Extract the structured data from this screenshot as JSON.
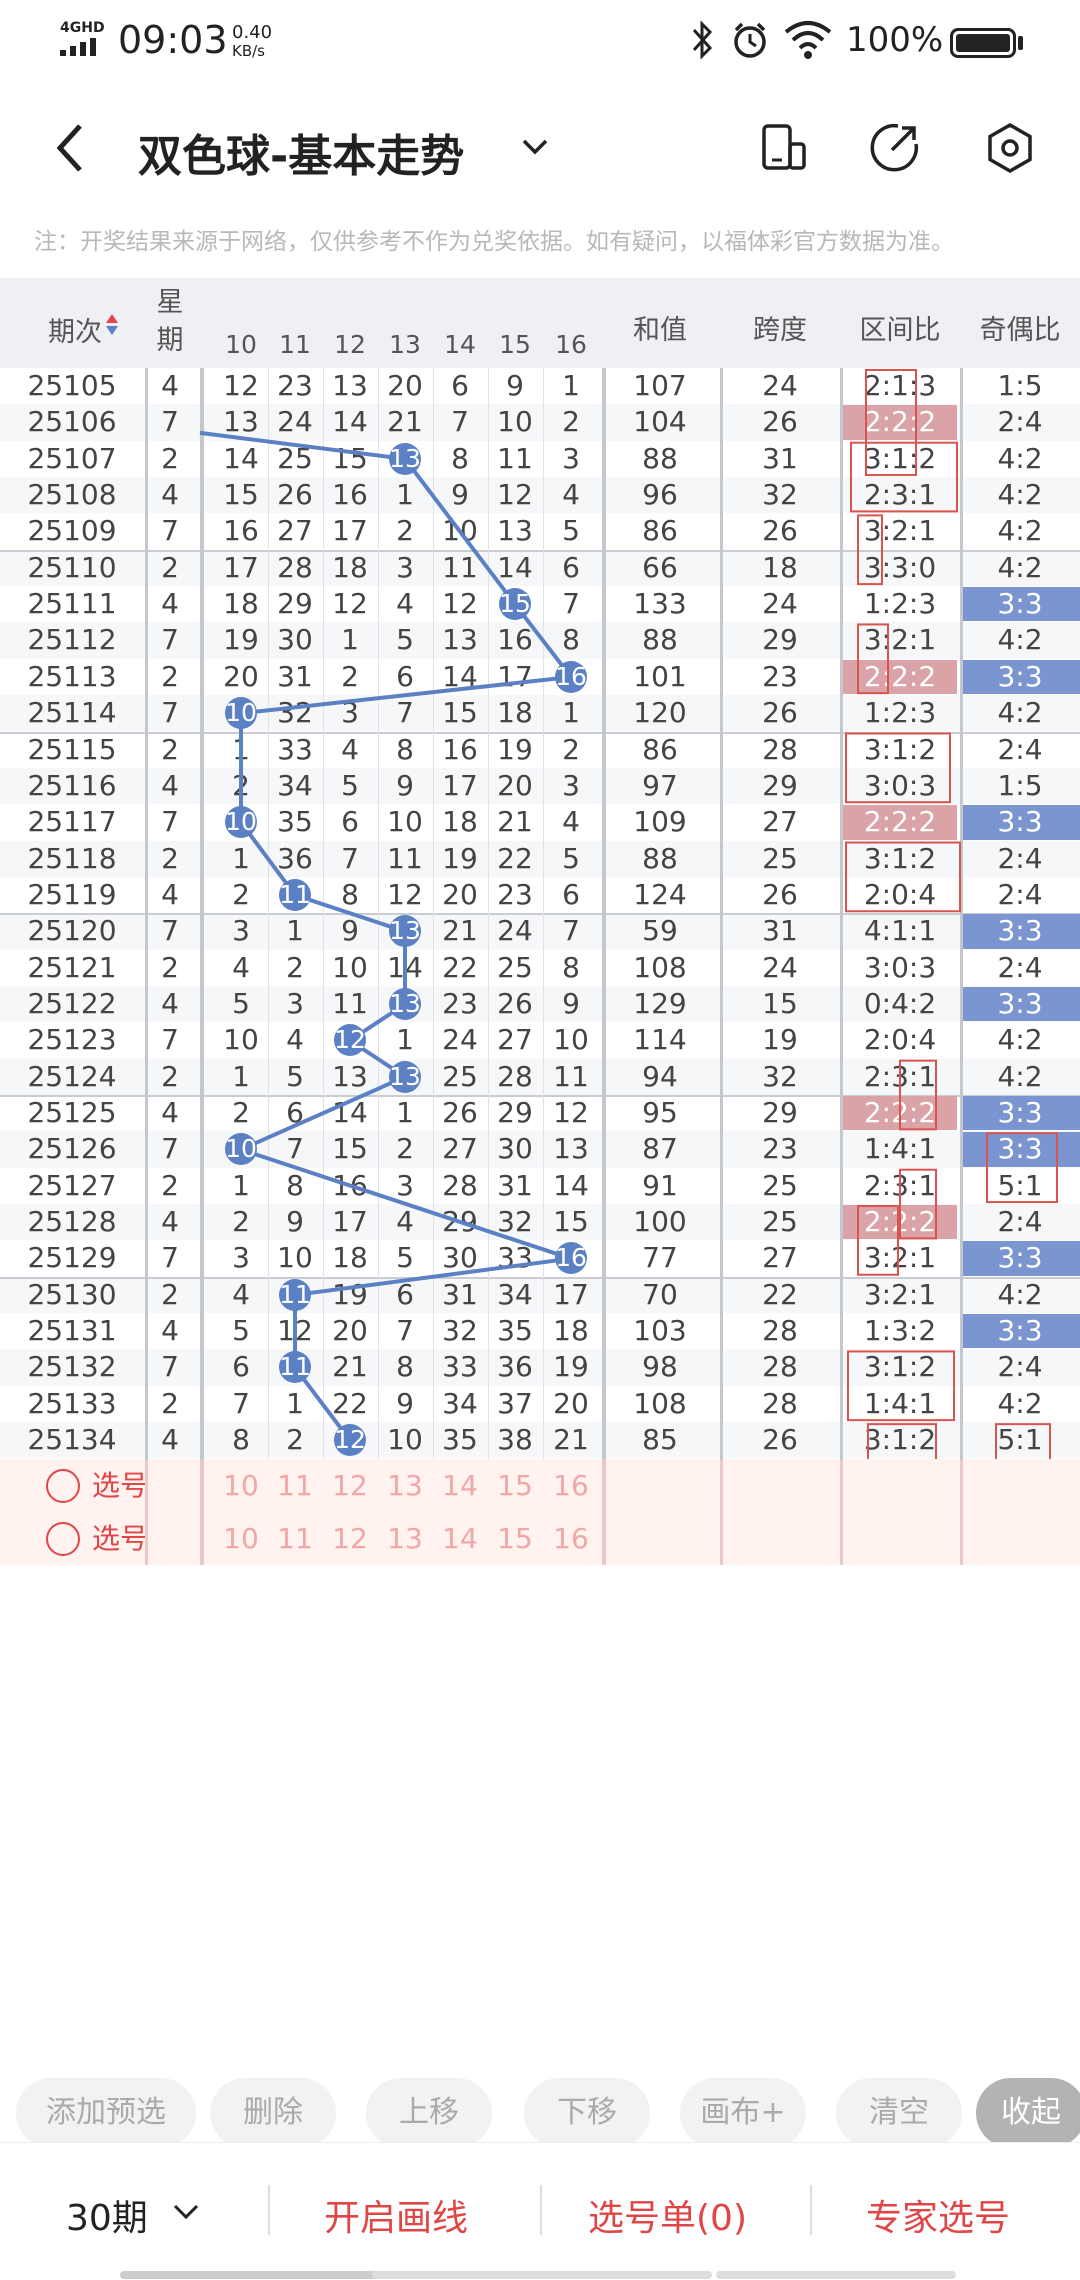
{
  "status_bar": {
    "network": "4GHD",
    "time": "09:03",
    "speed": "0.40",
    "speed_unit": "KB/s",
    "battery": "100%"
  },
  "header": {
    "title": "双色球-基本走势"
  },
  "notice": "注：开奖结果来源于网络，仅供参考不作为兑奖依据。如有疑问，以福体彩官方数据为准。",
  "table": {
    "columns": {
      "period": "期次",
      "weekday": "星期",
      "nums": [
        "10",
        "11",
        "12",
        "13",
        "14",
        "15",
        "16"
      ],
      "sum": "和值",
      "span": "跨度",
      "zone_ratio": "区间比",
      "odd_even": "奇偶比"
    },
    "rows": [
      {
        "p": "25105",
        "w": "4",
        "n": [
          "12",
          "23",
          "13",
          "20",
          "6",
          "9",
          "1"
        ],
        "s": "107",
        "sp": "24",
        "z": "2:1:3",
        "o": "1:5"
      },
      {
        "p": "25106",
        "w": "7",
        "n": [
          "13",
          "24",
          "14",
          "21",
          "7",
          "10",
          "2"
        ],
        "s": "104",
        "sp": "26",
        "z": "2:2:2",
        "o": "2:4"
      },
      {
        "p": "25107",
        "w": "2",
        "n": [
          "14",
          "25",
          "15",
          "13",
          "8",
          "11",
          "3"
        ],
        "s": "88",
        "sp": "31",
        "z": "3:1:2",
        "o": "4:2"
      },
      {
        "p": "25108",
        "w": "4",
        "n": [
          "15",
          "26",
          "16",
          "1",
          "9",
          "12",
          "4"
        ],
        "s": "96",
        "sp": "32",
        "z": "2:3:1",
        "o": "4:2"
      },
      {
        "p": "25109",
        "w": "7",
        "n": [
          "16",
          "27",
          "17",
          "2",
          "10",
          "13",
          "5"
        ],
        "s": "86",
        "sp": "26",
        "z": "3:2:1",
        "o": "4:2"
      },
      {
        "p": "25110",
        "w": "2",
        "n": [
          "17",
          "28",
          "18",
          "3",
          "11",
          "14",
          "6"
        ],
        "s": "66",
        "sp": "18",
        "z": "3:3:0",
        "o": "4:2"
      },
      {
        "p": "25111",
        "w": "4",
        "n": [
          "18",
          "29",
          "12",
          "4",
          "12",
          "15",
          "7"
        ],
        "s": "133",
        "sp": "24",
        "z": "1:2:3",
        "o": "3:3"
      },
      {
        "p": "25112",
        "w": "7",
        "n": [
          "19",
          "30",
          "1",
          "5",
          "13",
          "16",
          "8"
        ],
        "s": "88",
        "sp": "29",
        "z": "3:2:1",
        "o": "4:2"
      },
      {
        "p": "25113",
        "w": "2",
        "n": [
          "20",
          "31",
          "2",
          "6",
          "14",
          "17",
          "16"
        ],
        "s": "101",
        "sp": "23",
        "z": "2:2:2",
        "o": "3:3"
      },
      {
        "p": "25114",
        "w": "7",
        "n": [
          "10",
          "32",
          "3",
          "7",
          "15",
          "18",
          "1"
        ],
        "s": "120",
        "sp": "26",
        "z": "1:2:3",
        "o": "4:2"
      },
      {
        "p": "25115",
        "w": "2",
        "n": [
          "1",
          "33",
          "4",
          "8",
          "16",
          "19",
          "2"
        ],
        "s": "86",
        "sp": "28",
        "z": "3:1:2",
        "o": "2:4"
      },
      {
        "p": "25116",
        "w": "4",
        "n": [
          "2",
          "34",
          "5",
          "9",
          "17",
          "20",
          "3"
        ],
        "s": "97",
        "sp": "29",
        "z": "3:0:3",
        "o": "1:5"
      },
      {
        "p": "25117",
        "w": "7",
        "n": [
          "10",
          "35",
          "6",
          "10",
          "18",
          "21",
          "4"
        ],
        "s": "109",
        "sp": "27",
        "z": "2:2:2",
        "o": "3:3"
      },
      {
        "p": "25118",
        "w": "2",
        "n": [
          "1",
          "36",
          "7",
          "11",
          "19",
          "22",
          "5"
        ],
        "s": "88",
        "sp": "25",
        "z": "3:1:2",
        "o": "2:4"
      },
      {
        "p": "25119",
        "w": "4",
        "n": [
          "2",
          "11",
          "8",
          "12",
          "20",
          "23",
          "6"
        ],
        "s": "124",
        "sp": "26",
        "z": "2:0:4",
        "o": "2:4"
      },
      {
        "p": "25120",
        "w": "7",
        "n": [
          "3",
          "1",
          "9",
          "13",
          "21",
          "24",
          "7"
        ],
        "s": "59",
        "sp": "31",
        "z": "4:1:1",
        "o": "3:3"
      },
      {
        "p": "25121",
        "w": "2",
        "n": [
          "4",
          "2",
          "10",
          "14",
          "22",
          "25",
          "8"
        ],
        "s": "108",
        "sp": "24",
        "z": "3:0:3",
        "o": "2:4"
      },
      {
        "p": "25122",
        "w": "4",
        "n": [
          "5",
          "3",
          "11",
          "13",
          "23",
          "26",
          "9"
        ],
        "s": "129",
        "sp": "15",
        "z": "0:4:2",
        "o": "3:3"
      },
      {
        "p": "25123",
        "w": "7",
        "n": [
          "10",
          "4",
          "12",
          "1",
          "24",
          "27",
          "10"
        ],
        "s": "114",
        "sp": "19",
        "z": "2:0:4",
        "o": "4:2"
      },
      {
        "p": "25124",
        "w": "2",
        "n": [
          "1",
          "5",
          "13",
          "13",
          "25",
          "28",
          "11"
        ],
        "s": "94",
        "sp": "32",
        "z": "2:3:1",
        "o": "4:2"
      },
      {
        "p": "25125",
        "w": "4",
        "n": [
          "2",
          "6",
          "14",
          "1",
          "26",
          "29",
          "12"
        ],
        "s": "95",
        "sp": "29",
        "z": "2:2:2",
        "o": "3:3"
      },
      {
        "p": "25126",
        "w": "7",
        "n": [
          "10",
          "7",
          "15",
          "2",
          "27",
          "30",
          "13"
        ],
        "s": "87",
        "sp": "23",
        "z": "1:4:1",
        "o": "3:3"
      },
      {
        "p": "25127",
        "w": "2",
        "n": [
          "1",
          "8",
          "16",
          "3",
          "28",
          "31",
          "14"
        ],
        "s": "91",
        "sp": "25",
        "z": "2:3:1",
        "o": "5:1"
      },
      {
        "p": "25128",
        "w": "4",
        "n": [
          "2",
          "9",
          "17",
          "4",
          "29",
          "32",
          "15"
        ],
        "s": "100",
        "sp": "25",
        "z": "2:2:2",
        "o": "2:4"
      },
      {
        "p": "25129",
        "w": "7",
        "n": [
          "3",
          "10",
          "18",
          "5",
          "30",
          "33",
          "16"
        ],
        "s": "77",
        "sp": "27",
        "z": "3:2:1",
        "o": "3:3"
      },
      {
        "p": "25130",
        "w": "2",
        "n": [
          "4",
          "11",
          "19",
          "6",
          "31",
          "34",
          "17"
        ],
        "s": "70",
        "sp": "22",
        "z": "3:2:1",
        "o": "4:2"
      },
      {
        "p": "25131",
        "w": "4",
        "n": [
          "5",
          "12",
          "20",
          "7",
          "32",
          "35",
          "18"
        ],
        "s": "103",
        "sp": "28",
        "z": "1:3:2",
        "o": "3:3"
      },
      {
        "p": "25132",
        "w": "7",
        "n": [
          "6",
          "11",
          "21",
          "8",
          "33",
          "36",
          "19"
        ],
        "s": "98",
        "sp": "28",
        "z": "3:1:2",
        "o": "2:4"
      },
      {
        "p": "25133",
        "w": "2",
        "n": [
          "7",
          "1",
          "22",
          "9",
          "34",
          "37",
          "20"
        ],
        "s": "108",
        "sp": "28",
        "z": "1:4:1",
        "o": "4:2"
      },
      {
        "p": "25134",
        "w": "4",
        "n": [
          "8",
          "2",
          "12",
          "10",
          "35",
          "38",
          "21"
        ],
        "s": "85",
        "sp": "26",
        "z": "3:1:2",
        "o": "5:1"
      }
    ],
    "select_rows": [
      {
        "label": "选号",
        "nums": [
          "10",
          "11",
          "12",
          "13",
          "14",
          "15",
          "16"
        ]
      },
      {
        "label": "选号",
        "nums": [
          "10",
          "11",
          "12",
          "13",
          "14",
          "15",
          "16"
        ]
      }
    ]
  },
  "actions": [
    "添加预选",
    "删除",
    "上移",
    "下移",
    "画布+",
    "清空",
    "收起"
  ],
  "bottom": {
    "periods": "30期",
    "draw_line": "开启画线",
    "pick_list": "选号单(0)",
    "expert": "专家选号"
  },
  "colors": {
    "ball": "#5b80c3",
    "pink": "#d9a3a8",
    "blue_cell": "#7b95d0",
    "red_text": "#e04646",
    "select_bg": "#fff2ef"
  }
}
